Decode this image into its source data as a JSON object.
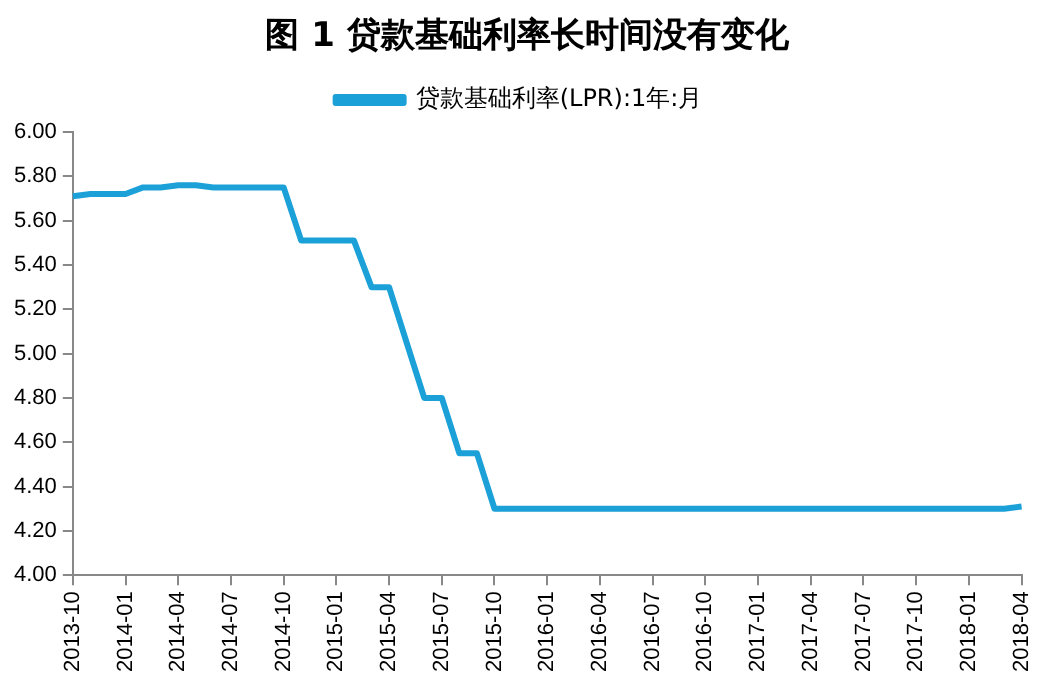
{
  "chart_data": {
    "type": "line",
    "title": "图 1  贷款基础利率长时间没有变化",
    "categories": [
      "2013-10",
      null,
      null,
      "2014-01",
      null,
      null,
      "2014-04",
      null,
      null,
      "2014-07",
      null,
      null,
      "2014-10",
      null,
      null,
      "2015-01",
      null,
      null,
      "2015-04",
      null,
      null,
      "2015-07",
      null,
      null,
      "2015-10",
      null,
      null,
      "2016-01",
      null,
      null,
      "2016-04",
      null,
      null,
      "2016-07",
      null,
      null,
      "2016-10",
      null,
      null,
      "2017-01",
      null,
      null,
      "2017-04",
      null,
      null,
      "2017-07",
      null,
      null,
      "2017-10",
      null,
      null,
      "2018-01",
      null,
      null,
      "2018-04"
    ],
    "series": [
      {
        "name": "贷款基础利率(LPR):1年:月",
        "color": "#1ba1d8",
        "values": [
          5.71,
          5.72,
          5.72,
          5.72,
          5.75,
          5.75,
          5.76,
          5.76,
          5.75,
          5.75,
          5.75,
          5.75,
          5.75,
          5.51,
          5.51,
          5.51,
          5.51,
          5.3,
          5.3,
          5.05,
          4.8,
          4.8,
          4.55,
          4.55,
          4.3,
          4.3,
          4.3,
          4.3,
          4.3,
          4.3,
          4.3,
          4.3,
          4.3,
          4.3,
          4.3,
          4.3,
          4.3,
          4.3,
          4.3,
          4.3,
          4.3,
          4.3,
          4.3,
          4.3,
          4.3,
          4.3,
          4.3,
          4.3,
          4.3,
          4.3,
          4.3,
          4.3,
          4.3,
          4.3,
          4.31
        ]
      }
    ],
    "ylim": [
      4,
      6
    ],
    "yticks": [
      {
        "value": 4,
        "label": "4.00"
      },
      {
        "value": 4.2,
        "label": "4.20"
      },
      {
        "value": 4.4,
        "label": "4.40"
      },
      {
        "value": 4.6,
        "label": "4.60"
      },
      {
        "value": 4.8,
        "label": "4.80"
      },
      {
        "value": 5,
        "label": "5.00"
      },
      {
        "value": 5.2,
        "label": "5.20"
      },
      {
        "value": 5.4,
        "label": "5.40"
      },
      {
        "value": 5.6,
        "label": "5.60"
      },
      {
        "value": 5.8,
        "label": "5.80"
      },
      {
        "value": 6,
        "label": "6.00"
      }
    ],
    "grid": false,
    "legend": "top",
    "marker": "none",
    "line_style": "solid"
  }
}
